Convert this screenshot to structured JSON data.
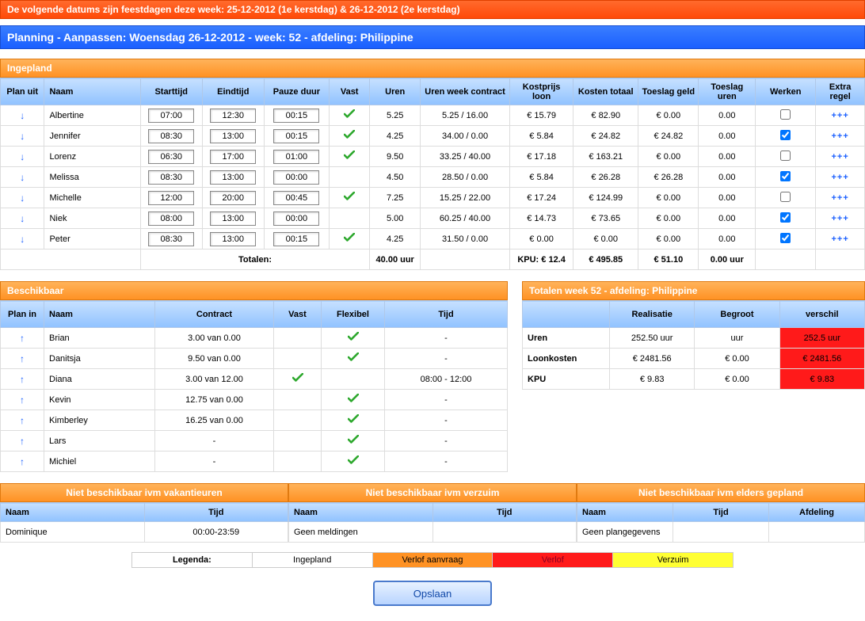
{
  "alert": "De volgende datums zijn feestdagen deze week: 25-12-2012 (1e kerstdag) & 26-12-2012 (2e kerstdag)",
  "title": "Planning - Aanpassen: Woensdag 26-12-2012 - week: 52 - afdeling: Philippine",
  "ingepland": {
    "header": "Ingepland",
    "cols": {
      "plan_uit": "Plan uit",
      "naam": "Naam",
      "starttijd": "Starttijd",
      "eindtijd": "Eindtijd",
      "pauze": "Pauze duur",
      "vast": "Vast",
      "uren": "Uren",
      "uren_week": "Uren week contract",
      "kostprijs": "Kostprijs loon",
      "kosten_totaal": "Kosten totaal",
      "toeslag_geld": "Toeslag geld",
      "toeslag_uren": "Toeslag uren",
      "werken": "Werken",
      "extra": "Extra regel"
    },
    "rows": [
      {
        "naam": "Albertine",
        "start": "07:00",
        "eind": "12:30",
        "pauze": "00:15",
        "vast": true,
        "uren": "5.25",
        "uren_week": "5.25 / 16.00",
        "kostprijs": "€ 15.79",
        "totaal": "€ 82.90",
        "tgeld": "€ 0.00",
        "turen": "0.00",
        "werken": false,
        "extra": "+++"
      },
      {
        "naam": "Jennifer",
        "start": "08:30",
        "eind": "13:00",
        "pauze": "00:15",
        "vast": true,
        "uren": "4.25",
        "uren_week": "34.00 / 0.00",
        "kostprijs": "€ 5.84",
        "totaal": "€ 24.82",
        "tgeld": "€ 24.82",
        "turen": "0.00",
        "werken": true,
        "extra": "+++"
      },
      {
        "naam": "Lorenz",
        "start": "06:30",
        "eind": "17:00",
        "pauze": "01:00",
        "vast": true,
        "uren": "9.50",
        "uren_week": "33.25 / 40.00",
        "kostprijs": "€ 17.18",
        "totaal": "€ 163.21",
        "tgeld": "€ 0.00",
        "turen": "0.00",
        "werken": false,
        "extra": "+++"
      },
      {
        "naam": "Melissa",
        "start": "08:30",
        "eind": "13:00",
        "pauze": "00:00",
        "vast": false,
        "uren": "4.50",
        "uren_week": "28.50 / 0.00",
        "kostprijs": "€ 5.84",
        "totaal": "€ 26.28",
        "tgeld": "€ 26.28",
        "turen": "0.00",
        "werken": true,
        "extra": "+++"
      },
      {
        "naam": "Michelle",
        "start": "12:00",
        "eind": "20:00",
        "pauze": "00:45",
        "vast": true,
        "uren": "7.25",
        "uren_week": "15.25 / 22.00",
        "kostprijs": "€ 17.24",
        "totaal": "€ 124.99",
        "tgeld": "€ 0.00",
        "turen": "0.00",
        "werken": false,
        "extra": "+++"
      },
      {
        "naam": "Niek",
        "start": "08:00",
        "eind": "13:00",
        "pauze": "00:00",
        "vast": false,
        "uren": "5.00",
        "uren_week": "60.25 / 40.00",
        "kostprijs": "€ 14.73",
        "totaal": "€ 73.65",
        "tgeld": "€ 0.00",
        "turen": "0.00",
        "werken": true,
        "extra": "+++"
      },
      {
        "naam": "Peter",
        "start": "08:30",
        "eind": "13:00",
        "pauze": "00:15",
        "vast": true,
        "uren": "4.25",
        "uren_week": "31.50 / 0.00",
        "kostprijs": "€ 0.00",
        "totaal": "€ 0.00",
        "tgeld": "€ 0.00",
        "turen": "0.00",
        "werken": true,
        "extra": "+++"
      }
    ],
    "totals": {
      "label": "Totalen:",
      "uren": "40.00 uur",
      "kpu": "KPU: € 12.4",
      "totaal": "€ 495.85",
      "tgeld": "€ 51.10",
      "turen": "0.00 uur"
    }
  },
  "beschikbaar": {
    "header": "Beschikbaar",
    "cols": {
      "plan_in": "Plan in",
      "naam": "Naam",
      "contract": "Contract",
      "vast": "Vast",
      "flex": "Flexibel",
      "tijd": "Tijd"
    },
    "rows": [
      {
        "naam": "Brian",
        "contract": "3.00 van 0.00",
        "vast": false,
        "flex": true,
        "tijd": "-"
      },
      {
        "naam": "Danitsja",
        "contract": "9.50 van 0.00",
        "vast": false,
        "flex": true,
        "tijd": "-"
      },
      {
        "naam": "Diana",
        "contract": "3.00 van 12.00",
        "vast": true,
        "flex": false,
        "tijd": "08:00 - 12:00"
      },
      {
        "naam": "Kevin",
        "contract": "12.75 van 0.00",
        "vast": false,
        "flex": true,
        "tijd": "-"
      },
      {
        "naam": "Kimberley",
        "contract": "16.25 van 0.00",
        "vast": false,
        "flex": true,
        "tijd": "-"
      },
      {
        "naam": "Lars",
        "contract": "-",
        "vast": false,
        "flex": true,
        "tijd": "-"
      },
      {
        "naam": "Michiel",
        "contract": "-",
        "vast": false,
        "flex": true,
        "tijd": "-"
      }
    ]
  },
  "week_totals": {
    "header": "Totalen week 52 - afdeling: Philippine",
    "cols": {
      "blank": "",
      "realisatie": "Realisatie",
      "begroot": "Begroot",
      "verschil": "verschil"
    },
    "rows": [
      {
        "label": "Uren",
        "real": "252.50 uur",
        "begroot": "uur",
        "verschil": "252.5 uur"
      },
      {
        "label": "Loonkosten",
        "real": "€ 2481.56",
        "begroot": "€ 0.00",
        "verschil": "€ 2481.56"
      },
      {
        "label": "KPU",
        "real": "€ 9.83",
        "begroot": "€ 0.00",
        "verschil": "€ 9.83"
      }
    ]
  },
  "row3": {
    "vakantie": {
      "header": "Niet beschikbaar ivm vakantieuren",
      "cols": {
        "naam": "Naam",
        "tijd": "Tijd"
      },
      "rows": [
        {
          "naam": "Dominique",
          "tijd": "00:00-23:59"
        }
      ]
    },
    "verzuim": {
      "header": "Niet beschikbaar ivm verzuim",
      "cols": {
        "naam": "Naam",
        "tijd": "Tijd"
      },
      "empty": "Geen meldingen"
    },
    "elders": {
      "header": "Niet beschikbaar ivm elders gepland",
      "cols": {
        "naam": "Naam",
        "tijd": "Tijd",
        "afdeling": "Afdeling"
      },
      "empty": "Geen plangegevens"
    }
  },
  "legend": {
    "label": "Legenda:",
    "items": [
      {
        "text": "Ingepland",
        "bg": "#ffffff",
        "fg": "#000"
      },
      {
        "text": "Verlof aanvraag",
        "bg": "#ff9224",
        "fg": "#000"
      },
      {
        "text": "Verlof",
        "bg": "#ff1a1a",
        "fg": "#802"
      },
      {
        "text": "Verzuim",
        "bg": "#ffff33",
        "fg": "#000"
      }
    ]
  },
  "save": "Opslaan",
  "colors": {
    "header_grad_top": "#c6e0ff",
    "header_grad_bot": "#90c2ff",
    "section_grad_top": "#ffb35a",
    "section_grad_bot": "#ff9224",
    "title_grad_top": "#3a7eff",
    "title_grad_bot": "#1a5fff",
    "red": "#ff1a1a",
    "link": "#1a5fff"
  }
}
